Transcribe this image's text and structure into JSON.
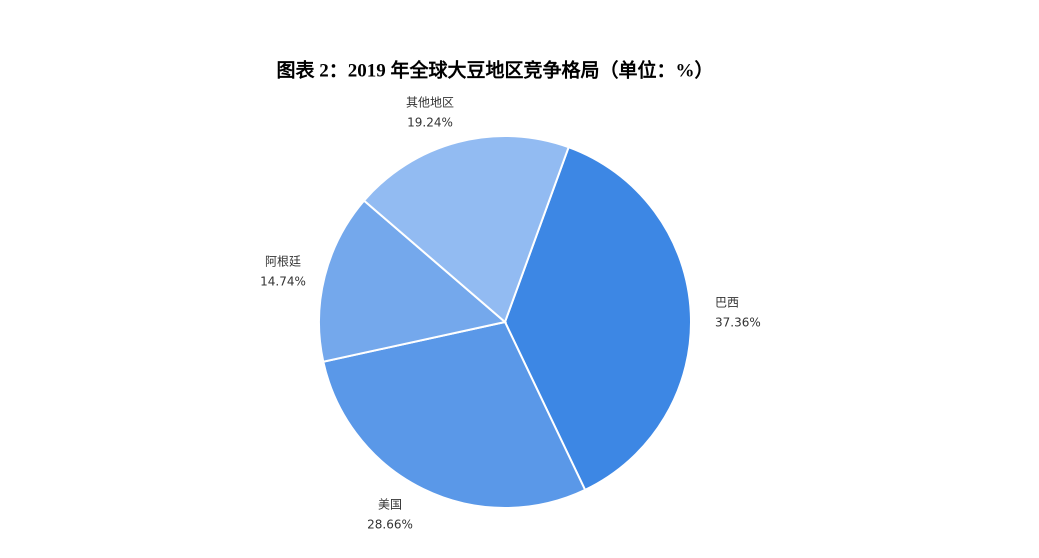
{
  "chart_data": {
    "type": "pie",
    "title": "图表 2：2019 年全球大豆地区竞争格局（单位：%）",
    "categories": [
      "巴西",
      "美国",
      "阿根廷",
      "其他地区"
    ],
    "values": [
      37.36,
      28.66,
      14.74,
      19.24
    ],
    "value_labels": [
      "37.36%",
      "28.66%",
      "14.74%",
      "19.24%"
    ],
    "colors": [
      "#3d87e4",
      "#5a98e8",
      "#74a8ec",
      "#92bbf2"
    ]
  }
}
